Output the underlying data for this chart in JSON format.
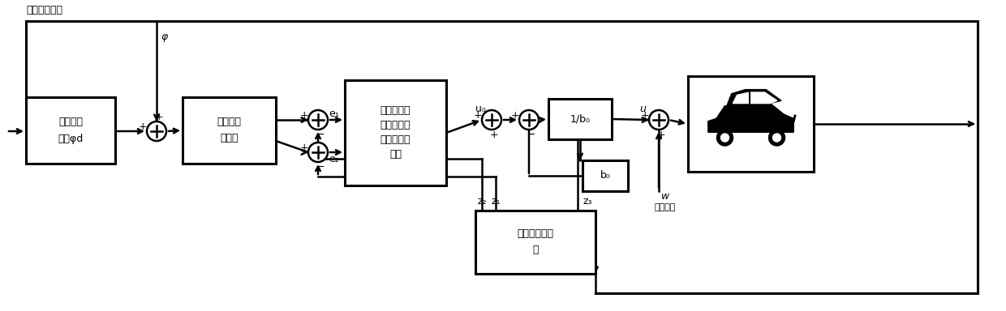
{
  "bg_color": "#ffffff",
  "line_color": "#000000",
  "top_label": "车辆实际位姿",
  "block1_line1": "理想的偏",
  "block1_line2": "航角φd",
  "block2_line1": "偏航角锁",
  "block2_line2": "定系统",
  "block3_line1": "非奇异终端",
  "block3_line2": "滑膜非线性",
  "block3_line3": "误差反馈控",
  "block3_line4": "制律",
  "block4_label": "1/b₀",
  "block5_label": "b₀",
  "block6_line1": "扩张状态观测",
  "block6_line2": "器",
  "label_phi": "φ",
  "label_u0": "u₀",
  "label_u": "u",
  "label_e1": "e₁",
  "label_e2": "e₂",
  "label_z1": "z₁",
  "label_z2": "z₂",
  "label_z3": "z₃",
  "label_w": "w",
  "label_wdist": "外部扰动",
  "lw": 1.8,
  "lw_thick": 2.2,
  "fs_block": 9,
  "fs_label": 9,
  "fs_sign": 9
}
